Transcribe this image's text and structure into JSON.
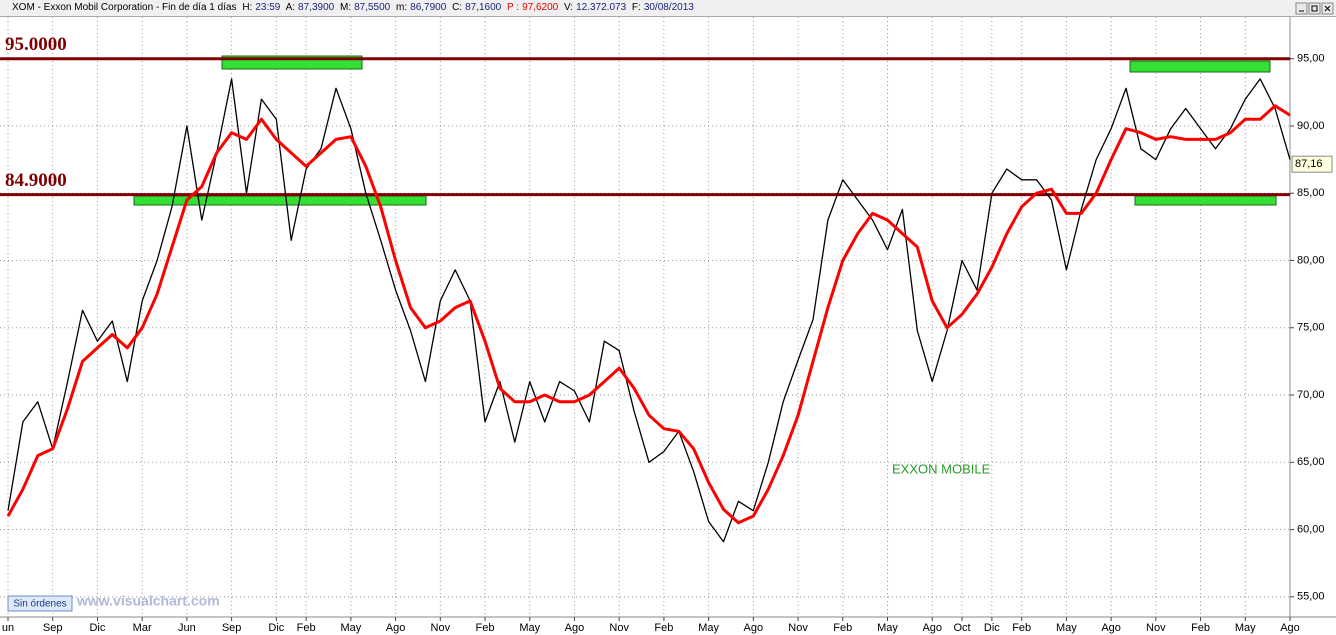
{
  "header": {
    "items": [
      "XOM - Exxon Mobil Corporation - Fin de día 1 días",
      "H:",
      "23:59",
      "A:",
      "87,3900",
      "M:",
      "87,5500",
      "m:",
      "86,7900",
      "C:",
      "87,1600",
      "P :",
      "97,6200",
      "V:",
      "12.372.073",
      "F:",
      "30/08/2013"
    ]
  },
  "chart_data": {
    "type": "line",
    "categories": [
      "un",
      null,
      null,
      "Sep",
      null,
      null,
      "Dic",
      null,
      null,
      "Mar",
      null,
      null,
      "Jun",
      null,
      null,
      "Sep",
      null,
      null,
      "Dic",
      null,
      "Feb",
      null,
      null,
      "May",
      null,
      null,
      "Ago",
      null,
      null,
      "Nov",
      null,
      null,
      "Feb",
      null,
      null,
      "May",
      null,
      null,
      "Ago",
      null,
      null,
      "Nov",
      null,
      null,
      "Feb",
      null,
      null,
      "May",
      null,
      null,
      "Ago",
      null,
      null,
      "Nov",
      null,
      null,
      "Feb",
      null,
      null,
      "May",
      null,
      null,
      "Ago",
      null,
      "Oct",
      null,
      "Dic",
      null,
      "Feb",
      null,
      null,
      "May",
      null,
      null,
      "Ago",
      null,
      null,
      "Nov",
      null,
      null,
      "Feb",
      null,
      null,
      "May",
      null,
      null,
      "Ago"
    ],
    "series": [
      {
        "color": "#000000",
        "values": [
          61.4,
          68,
          69.5,
          66,
          71,
          76.3,
          74,
          75.5,
          71,
          77,
          80,
          84,
          90,
          83,
          88,
          93.5,
          85,
          92,
          90.5,
          81.5,
          86.8,
          88.3,
          92.8,
          89.8,
          85,
          81.5,
          77.8,
          74.8,
          71,
          77,
          79.3,
          77,
          68,
          71,
          66.5,
          71,
          68,
          71,
          70.3,
          68,
          74,
          73.3,
          68.8,
          65,
          65.8,
          67.3,
          64.3,
          60.6,
          59.1,
          62.1,
          61.4,
          65,
          69.5,
          72.6,
          75.6,
          83,
          86,
          84.5,
          83,
          80.8,
          83.8,
          74.8,
          71,
          74.8,
          80,
          77.8,
          85,
          86.8,
          86,
          86,
          84.5,
          79.3,
          83.8,
          87.5,
          89.8,
          92.8,
          88.3,
          87.5,
          89.8,
          91.3,
          89.8,
          88.3,
          89.8,
          92,
          93.5,
          91.3,
          87.5
        ]
      },
      {
        "color": "#ff0000",
        "values": [
          61,
          63,
          65.5,
          66,
          69,
          72.5,
          73.5,
          74.5,
          73.5,
          75,
          77.5,
          81,
          84.5,
          85.5,
          88,
          89.5,
          89,
          90.5,
          89,
          88,
          87,
          88,
          89,
          89.2,
          87,
          84,
          80,
          76.5,
          75,
          75.5,
          76.5,
          77,
          74,
          70.5,
          69.5,
          69.5,
          70,
          69.5,
          69.5,
          70,
          71,
          72,
          70.5,
          68.5,
          67.5,
          67.3,
          66,
          63.5,
          61.5,
          60.5,
          61,
          63,
          65.5,
          68.5,
          72.5,
          76.5,
          80,
          82,
          83.5,
          83,
          82,
          81,
          77,
          75,
          76,
          77.5,
          79.5,
          82,
          84,
          85,
          85.3,
          83.5,
          83.5,
          85,
          87.5,
          89.8,
          89.5,
          89,
          89.2,
          89,
          89,
          89,
          89.5,
          90.5,
          90.5,
          91.5,
          90.8
        ]
      }
    ],
    "ylim": [
      53.5,
      98.1
    ],
    "yticks": [
      {
        "value": 55,
        "label": "55,00"
      },
      {
        "value": 60,
        "label": "60,00"
      },
      {
        "value": 65,
        "label": "65,00"
      },
      {
        "value": 70,
        "label": "70,00"
      },
      {
        "value": 75,
        "label": "75,00"
      },
      {
        "value": 80,
        "label": "80,00"
      },
      {
        "value": 85,
        "label": "85,00"
      },
      {
        "value": 90,
        "label": "90,00"
      },
      {
        "value": 95,
        "label": "95,00"
      }
    ],
    "levels": [
      {
        "value": 95,
        "label": "95.0000"
      },
      {
        "value": 84.9,
        "label": "84.9000"
      }
    ],
    "level_color": "#800000",
    "last": {
      "value": 87.16,
      "label": "87,16"
    },
    "annotation": "EXXON MOBILE",
    "grid": true
  },
  "footer": {
    "button": "Sin órdenes",
    "watermark": "www.visualchart.com"
  }
}
